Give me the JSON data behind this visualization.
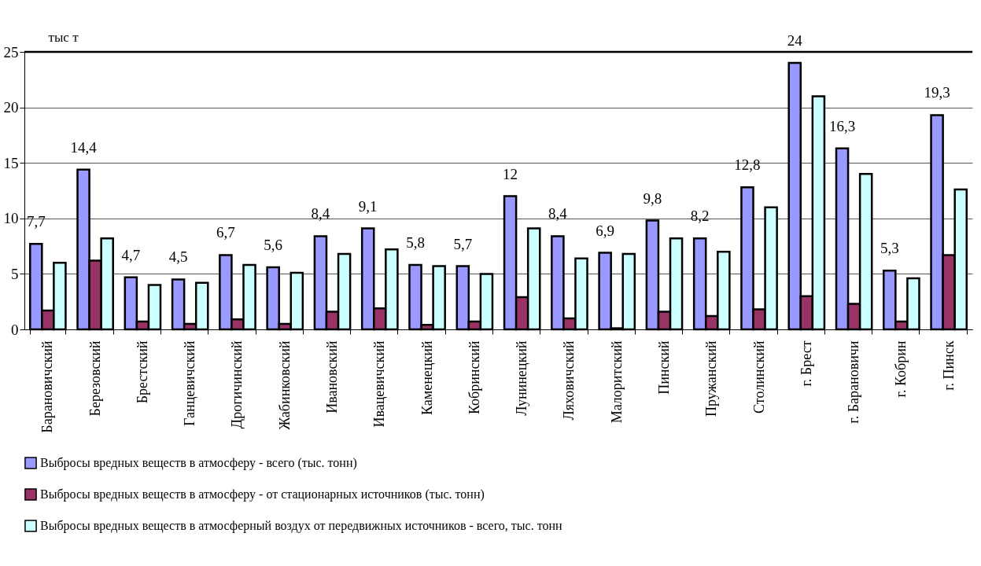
{
  "chart_data": {
    "type": "bar",
    "ylabel": "тыс т",
    "categories": [
      "Барановичский",
      "Березовский",
      "Брестский",
      "Ганцевичский",
      "Дрогичинский",
      "Жабинковский",
      "Ивановский",
      "Ивацевичский",
      "Каменецкий",
      "Кобринский",
      "Лунинецкий",
      "Ляховичский",
      "Малоритский",
      "Пинский",
      "Пружанский",
      "Столинский",
      "г. Брест",
      "г. Барановичи",
      "г. Кобрин",
      "г. Пинск"
    ],
    "series": [
      {
        "name": "Выбросы вредных веществ в атмосферу - всего (тыс. тонн)",
        "color": "#9999ff",
        "values": [
          7.7,
          14.4,
          4.7,
          4.5,
          6.7,
          5.6,
          8.4,
          9.1,
          5.8,
          5.7,
          12,
          8.4,
          6.9,
          9.8,
          8.2,
          12.8,
          24,
          16.3,
          5.3,
          19.3
        ],
        "value_labels": [
          "7,7",
          "14,4",
          "4,7",
          "4,5",
          "6,7",
          "5,6",
          "8,4",
          "9,1",
          "5,8",
          "5,7",
          "12",
          "8,4",
          "6,9",
          "9,8",
          "8,2",
          "12,8",
          "24",
          "16,3",
          "5,3",
          "19,3"
        ]
      },
      {
        "name": "Выбросы вредных веществ в атмосферу  - от стационарных источников (тыс. тонн)",
        "color": "#993366",
        "values": [
          1.7,
          6.2,
          0.7,
          0.5,
          0.9,
          0.5,
          1.6,
          1.9,
          0.4,
          0.7,
          2.9,
          1.0,
          0.1,
          1.6,
          1.2,
          1.8,
          3.0,
          2.3,
          0.7,
          6.7
        ]
      },
      {
        "name": "Выбросы вредных веществ в атмосферный воздух от передвижных источников  - всего, тыс. тонн",
        "color": "#ccffff",
        "values": [
          6.0,
          8.2,
          4.0,
          4.2,
          5.8,
          5.1,
          6.8,
          7.2,
          5.7,
          5.0,
          9.1,
          6.4,
          6.8,
          8.2,
          7.0,
          11.0,
          21.0,
          14.0,
          4.6,
          12.6
        ]
      }
    ],
    "ylim": [
      0,
      25
    ],
    "yticks": [
      0,
      5,
      10,
      15,
      20,
      25
    ],
    "grid": "y",
    "legend": "bottom"
  }
}
